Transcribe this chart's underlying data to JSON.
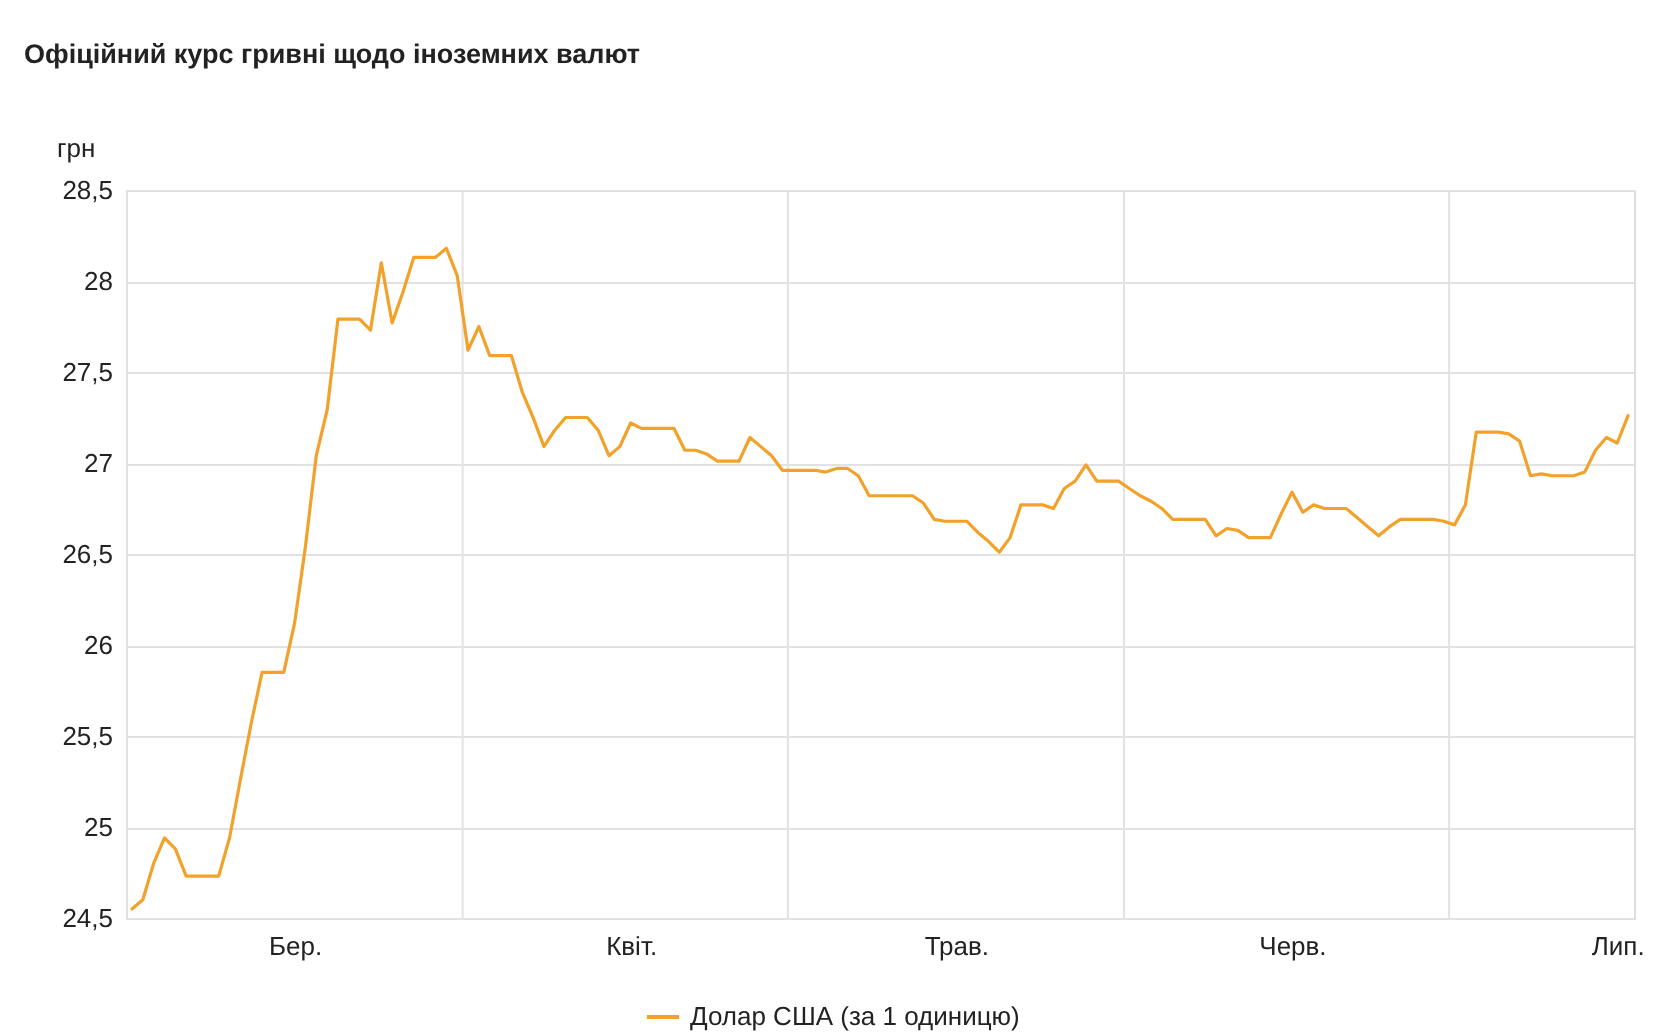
{
  "chart_data": {
    "type": "line",
    "title": "Офіційний курс гривні щодо іноземних валют",
    "ylabel": "грн",
    "categories": [
      null,
      null,
      null,
      null,
      null,
      null,
      null,
      null,
      null,
      null,
      null,
      null,
      null,
      null,
      null,
      "Бер.",
      null,
      null,
      null,
      null,
      null,
      null,
      null,
      null,
      null,
      null,
      null,
      null,
      null,
      null,
      null,
      null,
      null,
      null,
      null,
      null,
      null,
      null,
      null,
      null,
      null,
      null,
      null,
      null,
      null,
      null,
      "Квіт.",
      null,
      null,
      null,
      null,
      null,
      null,
      null,
      null,
      null,
      null,
      null,
      null,
      null,
      null,
      null,
      null,
      null,
      null,
      null,
      null,
      null,
      null,
      null,
      null,
      null,
      null,
      null,
      null,
      null,
      "Трав.",
      null,
      null,
      null,
      null,
      null,
      null,
      null,
      null,
      null,
      null,
      null,
      null,
      null,
      null,
      null,
      null,
      null,
      null,
      null,
      null,
      null,
      null,
      null,
      null,
      null,
      null,
      null,
      null,
      null,
      null,
      "Черв.",
      null,
      null,
      null,
      null,
      null,
      null,
      null,
      null,
      null,
      null,
      null,
      null,
      null,
      null,
      null,
      null,
      null,
      null,
      null,
      null,
      null,
      null,
      null,
      null,
      null,
      null,
      null,
      null,
      null,
      "Лип.",
      null
    ],
    "series": [
      {
        "name": "Долар США (за 1 одиницю)",
        "color": "#f2a12a",
        "values": [
          24.55,
          24.6,
          24.8,
          24.94,
          24.88,
          24.73,
          24.73,
          24.73,
          24.73,
          24.94,
          25.26,
          25.57,
          25.85,
          25.85,
          25.85,
          26.12,
          26.54,
          27.04,
          27.29,
          27.79,
          27.79,
          27.79,
          27.73,
          28.1,
          27.77,
          27.94,
          28.13,
          28.13,
          28.13,
          28.18,
          28.03,
          27.62,
          27.75,
          27.59,
          27.59,
          27.59,
          27.39,
          27.25,
          27.09,
          27.18,
          27.25,
          27.25,
          27.25,
          27.18,
          27.04,
          27.09,
          27.22,
          27.19,
          27.19,
          27.19,
          27.19,
          27.07,
          27.07,
          27.05,
          27.01,
          27.01,
          27.01,
          27.14,
          27.09,
          27.04,
          26.96,
          26.96,
          26.96,
          26.96,
          26.95,
          26.97,
          26.97,
          26.93,
          26.82,
          26.82,
          26.82,
          26.82,
          26.82,
          26.78,
          26.69,
          26.68,
          26.68,
          26.68,
          26.62,
          26.57,
          26.51,
          26.59,
          26.77,
          26.77,
          26.77,
          26.75,
          26.86,
          26.9,
          26.99,
          26.9,
          26.9,
          26.9,
          26.86,
          26.82,
          26.79,
          26.75,
          26.69,
          26.69,
          26.69,
          26.69,
          26.6,
          26.64,
          26.63,
          26.59,
          26.59,
          26.59,
          26.72,
          26.84,
          26.73,
          26.77,
          26.75,
          26.75,
          26.75,
          26.7,
          26.65,
          26.6,
          26.65,
          26.69,
          26.69,
          26.69,
          26.69,
          26.68,
          26.66,
          26.77,
          27.17,
          27.17,
          27.17,
          27.16,
          27.12,
          26.93,
          26.94,
          26.93,
          26.93,
          26.93,
          26.95,
          27.07,
          27.14,
          27.11,
          27.26
        ]
      }
    ],
    "ylim": [
      24.5,
      28.5
    ],
    "yticks": [
      {
        "value": 24.5,
        "label": "24,5"
      },
      25,
      {
        "value": 25.5,
        "label": "25,5"
      },
      26,
      {
        "value": 26.5,
        "label": "26,5"
      },
      27,
      {
        "value": 27.5,
        "label": "27,5"
      },
      28,
      {
        "value": 28.5,
        "label": "28,5"
      }
    ],
    "grid": "y",
    "legend": "bottom",
    "line_style": "solid"
  }
}
